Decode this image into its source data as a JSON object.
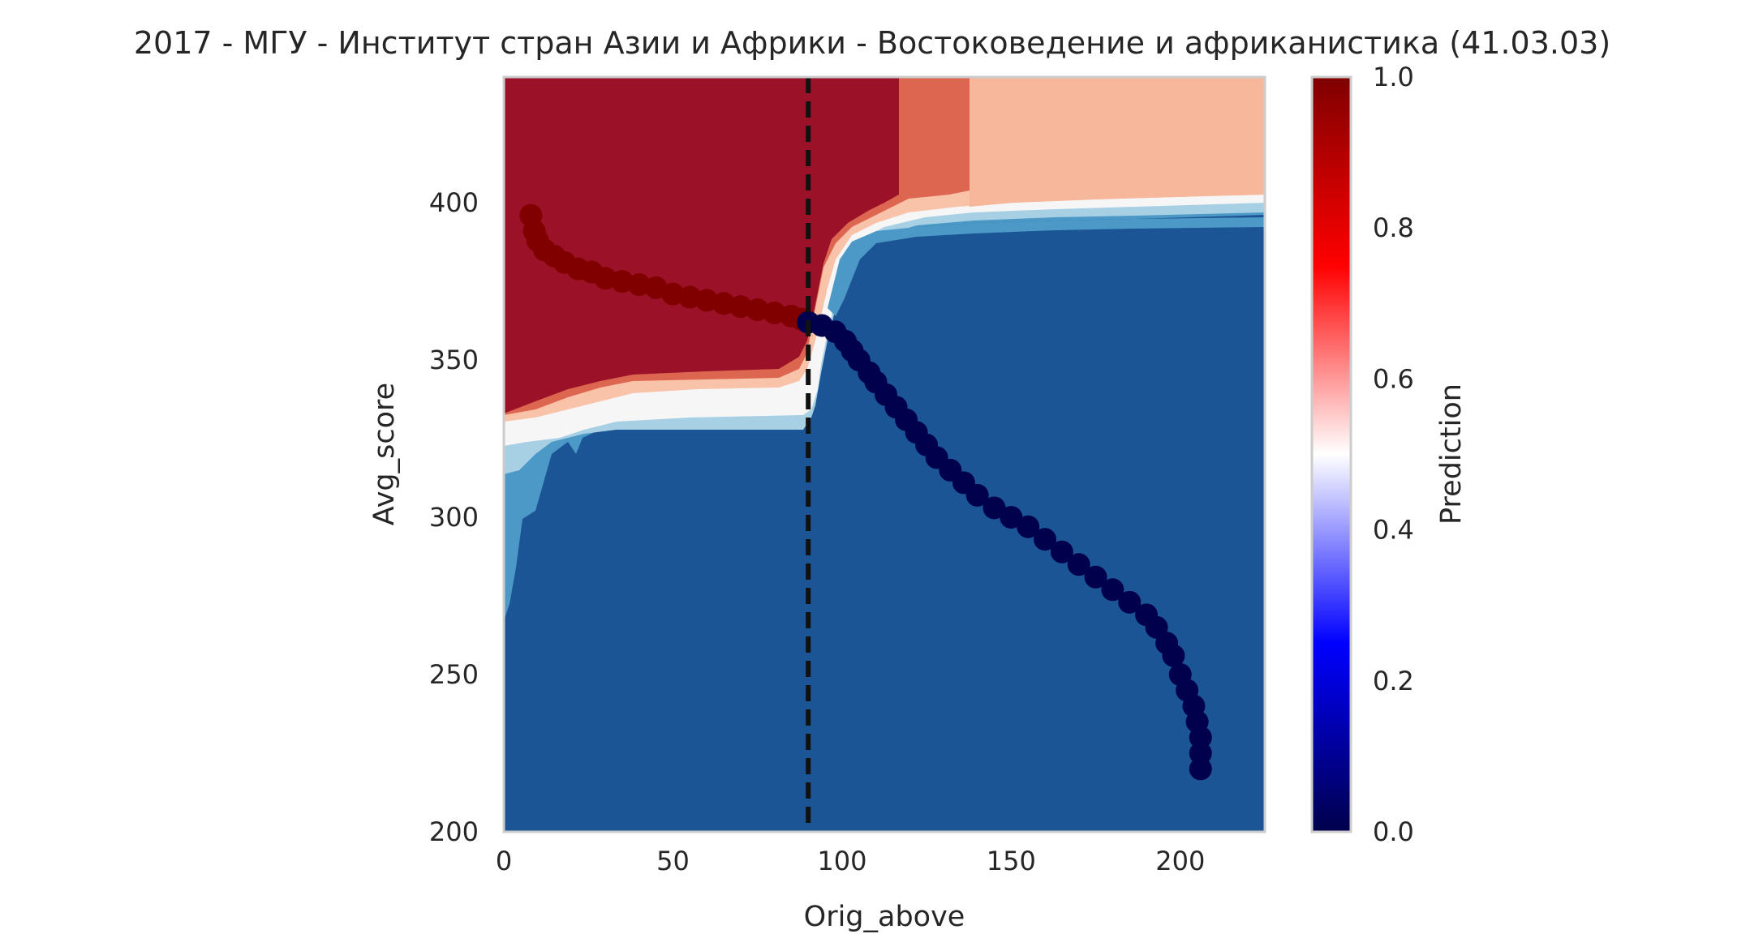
{
  "chart_data": {
    "type": "contour-scatter",
    "title": "2017 - МГУ - Институт стран Азии и Африки - Востоковедение и африканистика (41.03.03)",
    "xlabel": "Orig_above",
    "ylabel": "Avg_score",
    "xlim": [
      0,
      225
    ],
    "ylim": [
      200,
      440
    ],
    "x_ticks": [
      "0",
      "50",
      "100",
      "150",
      "200"
    ],
    "y_ticks": [
      "200",
      "250",
      "300",
      "350",
      "400"
    ],
    "grid": false,
    "vline_x": 90,
    "colorbar": {
      "label": "Prediction",
      "range": [
        0.0,
        1.0
      ],
      "ticks": [
        "0.0",
        "0.2",
        "0.4",
        "0.6",
        "0.8",
        "1.0"
      ],
      "colormap": "seismic"
    },
    "contour_fills": {
      "strong_red": "#9b1127",
      "mid_red": "#dd6651",
      "light_red": "#f6b79b",
      "pale_red": "#f9c3aa",
      "white": "#f6f6f7",
      "pale_blue": "#c1dcec",
      "light_blue": "#a7d0e4",
      "mid_blue": "#4c98c6",
      "strong_blue": "#1b5595"
    },
    "scatter_points_red": [
      [
        8,
        396
      ],
      [
        9,
        391
      ],
      [
        10,
        388
      ],
      [
        12,
        385
      ],
      [
        15,
        383
      ],
      [
        18,
        381
      ],
      [
        22,
        379
      ],
      [
        26,
        378
      ],
      [
        30,
        376
      ],
      [
        35,
        375
      ],
      [
        40,
        374
      ],
      [
        45,
        373
      ],
      [
        50,
        371
      ],
      [
        55,
        370
      ],
      [
        60,
        369
      ],
      [
        65,
        368
      ],
      [
        70,
        367
      ],
      [
        75,
        366
      ],
      [
        80,
        365
      ],
      [
        85,
        364
      ],
      [
        88,
        363
      ]
    ],
    "scatter_points_blue": [
      [
        90,
        362
      ],
      [
        94,
        361
      ],
      [
        98,
        359
      ],
      [
        101,
        356
      ],
      [
        103,
        353
      ],
      [
        105,
        350
      ],
      [
        108,
        346
      ],
      [
        110,
        343
      ],
      [
        113,
        339
      ],
      [
        116,
        335
      ],
      [
        119,
        331
      ],
      [
        122,
        327
      ],
      [
        125,
        323
      ],
      [
        128,
        319
      ],
      [
        132,
        315
      ],
      [
        136,
        311
      ],
      [
        140,
        307
      ],
      [
        145,
        303
      ],
      [
        150,
        300
      ],
      [
        155,
        297
      ],
      [
        160,
        293
      ],
      [
        165,
        289
      ],
      [
        170,
        285
      ],
      [
        175,
        281
      ],
      [
        180,
        277
      ],
      [
        185,
        273
      ],
      [
        190,
        269
      ],
      [
        193,
        265
      ],
      [
        196,
        260
      ],
      [
        198,
        256
      ],
      [
        200,
        250
      ],
      [
        202,
        245
      ],
      [
        204,
        240
      ],
      [
        205,
        235
      ],
      [
        206,
        230
      ],
      [
        206,
        225
      ],
      [
        206,
        220
      ]
    ]
  }
}
